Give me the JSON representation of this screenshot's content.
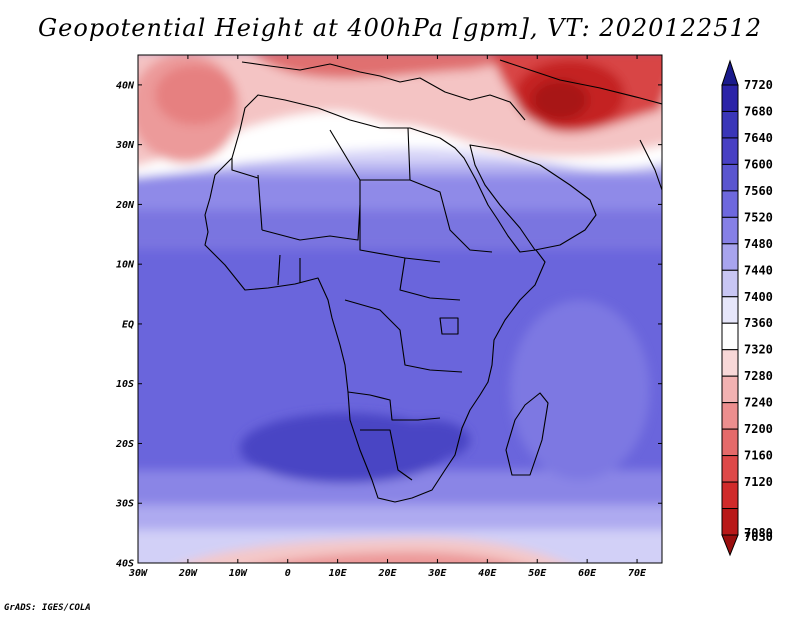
{
  "title": "Geopotential Height at 400hPa [gpm], VT: 2020122512",
  "credit": "GrADS: IGES/COLA",
  "map": {
    "lat_range": [
      -40,
      45
    ],
    "lon_range": [
      -30,
      75
    ],
    "lat_ticks": [
      {
        "value": 40,
        "label": "40N"
      },
      {
        "value": 30,
        "label": "30N"
      },
      {
        "value": 20,
        "label": "20N"
      },
      {
        "value": 10,
        "label": "10N"
      },
      {
        "value": 0,
        "label": "EQ"
      },
      {
        "value": -10,
        "label": "10S"
      },
      {
        "value": -20,
        "label": "20S"
      },
      {
        "value": -30,
        "label": "30S"
      },
      {
        "value": -40,
        "label": "40S"
      }
    ],
    "lon_ticks": [
      {
        "value": -30,
        "label": "30W"
      },
      {
        "value": -20,
        "label": "20W"
      },
      {
        "value": -10,
        "label": "10W"
      },
      {
        "value": 0,
        "label": "0"
      },
      {
        "value": 10,
        "label": "10E"
      },
      {
        "value": 20,
        "label": "20E"
      },
      {
        "value": 30,
        "label": "30E"
      },
      {
        "value": 40,
        "label": "40E"
      },
      {
        "value": 50,
        "label": "50E"
      },
      {
        "value": 60,
        "label": "60E"
      },
      {
        "value": 70,
        "label": "70E"
      }
    ]
  },
  "colorbar": {
    "levels": [
      "7720",
      "7680",
      "7640",
      "7600",
      "7560",
      "7520",
      "7480",
      "7440",
      "7400",
      "7360",
      "7320",
      "7280",
      "7240",
      "7200",
      "7160",
      "7120",
      "7080",
      "7030"
    ],
    "colors": [
      "#1a1a8c",
      "#2b23a8",
      "#3a36b8",
      "#4840c4",
      "#5a55d0",
      "#6e68de",
      "#8680e6",
      "#a8a4ee",
      "#c8c6f4",
      "#e6e6fa",
      "#ffffff",
      "#f8d8d8",
      "#f2b2b2",
      "#ec8e8e",
      "#e56a6a",
      "#de4848",
      "#d02a2a",
      "#b81818",
      "#9a0e0e"
    ]
  }
}
